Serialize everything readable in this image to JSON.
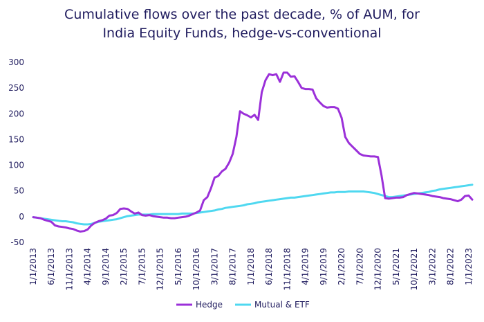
{
  "chart_data": {
    "type": "line",
    "title_line1": "Cumulative flows over the past decade, % of AUM, for",
    "title_line2": "India Equity Funds, hedge-vs-conventional",
    "xlabel": "",
    "ylabel": "",
    "ylim": [
      -50,
      300
    ],
    "y_ticks": [
      300,
      250,
      200,
      150,
      100,
      50,
      0,
      -50
    ],
    "x_tick_labels": [
      "1/1/2013",
      "6/1/2013",
      "11/1/2013",
      "4/1/2014",
      "9/1/2014",
      "2/1/2015",
      "7/1/2015",
      "12/1/2015",
      "5/1/2016",
      "10/1/2016",
      "3/1/2017",
      "8/1/2017",
      "1/1/2018",
      "6/1/2018",
      "11/1/2018",
      "4/1/2019",
      "9/1/2019",
      "2/1/2020",
      "7/1/2020",
      "12/1/2020",
      "5/1/2021",
      "10/1/2021",
      "3/1/2022",
      "8/1/2022",
      "1/1/2023"
    ],
    "grid": false,
    "legend_position": "bottom",
    "series": [
      {
        "name": "Hedge",
        "color": "#9b30d9",
        "x": [
          0,
          1,
          2,
          3,
          4,
          5,
          6,
          7,
          8,
          9,
          10,
          11,
          12,
          13,
          14,
          15,
          16,
          17,
          18,
          19,
          20,
          21,
          22,
          23,
          24,
          25,
          26,
          27,
          28,
          29,
          30,
          31,
          32,
          33,
          34,
          35,
          36,
          37,
          38,
          39,
          40,
          41,
          42,
          43,
          44,
          45,
          46,
          47,
          48,
          49,
          50,
          51,
          52,
          53,
          54,
          55,
          56,
          57,
          58,
          59,
          60,
          61,
          62,
          63,
          64,
          65,
          66,
          67,
          68,
          69,
          70,
          71,
          72,
          73,
          74,
          75,
          76,
          77,
          78,
          79,
          80,
          81,
          82,
          83,
          84,
          85,
          86,
          87,
          88,
          89,
          90,
          91,
          92,
          93,
          94,
          95,
          96,
          97,
          98,
          99,
          100,
          101,
          102,
          103,
          104,
          105,
          106,
          107,
          108,
          109,
          110,
          111,
          112,
          113,
          114,
          115,
          116,
          117,
          118,
          119,
          120,
          121
        ],
        "values": [
          -1,
          -2,
          -3,
          -6,
          -8,
          -10,
          -17,
          -19,
          -20,
          -21,
          -23,
          -24,
          -27,
          -29,
          -28,
          -25,
          -17,
          -12,
          -9,
          -7,
          -4,
          2,
          3,
          7,
          15,
          16,
          15,
          10,
          6,
          8,
          3,
          2,
          3,
          1,
          0,
          -1,
          -2,
          -2,
          -3,
          -3,
          -2,
          -1,
          0,
          2,
          5,
          8,
          12,
          32,
          38,
          55,
          76,
          79,
          88,
          93,
          105,
          122,
          155,
          205,
          200,
          197,
          193,
          198,
          188,
          242,
          265,
          277,
          275,
          277,
          262,
          280,
          280,
          272,
          273,
          262,
          250,
          248,
          248,
          247,
          230,
          222,
          215,
          212,
          213,
          213,
          210,
          192,
          155,
          143,
          136,
          129,
          122,
          119,
          118,
          117,
          117,
          116,
          80,
          36,
          35,
          36,
          37,
          37,
          38,
          42,
          44,
          46,
          45,
          44,
          43,
          42,
          40,
          39,
          38,
          36,
          35,
          34,
          32,
          30,
          33,
          40,
          41,
          33
        ]
      },
      {
        "name": "Mutual & ETF",
        "color": "#4fd8f0",
        "x": [
          0,
          1,
          2,
          3,
          4,
          5,
          6,
          7,
          8,
          9,
          10,
          11,
          12,
          13,
          14,
          15,
          16,
          17,
          18,
          19,
          20,
          21,
          22,
          23,
          24,
          25,
          26,
          27,
          28,
          29,
          30,
          31,
          32,
          33,
          34,
          35,
          36,
          37,
          38,
          39,
          40,
          41,
          42,
          43,
          44,
          45,
          46,
          47,
          48,
          49,
          50,
          51,
          52,
          53,
          54,
          55,
          56,
          57,
          58,
          59,
          60,
          61,
          62,
          63,
          64,
          65,
          66,
          67,
          68,
          69,
          70,
          71,
          72,
          73,
          74,
          75,
          76,
          77,
          78,
          79,
          80,
          81,
          82,
          83,
          84,
          85,
          86,
          87,
          88,
          89,
          90,
          91,
          92,
          93,
          94,
          95,
          96,
          97,
          98,
          99,
          100,
          101,
          102,
          103,
          104,
          105,
          106,
          107,
          108,
          109,
          110,
          111,
          112,
          113,
          114,
          115,
          116,
          117,
          118,
          119,
          120,
          121
        ],
        "values": [
          -1,
          -2,
          -3,
          -4,
          -5,
          -6,
          -7,
          -8,
          -9,
          -9,
          -10,
          -11,
          -13,
          -14,
          -15,
          -15,
          -14,
          -12,
          -10,
          -9,
          -8,
          -7,
          -6,
          -5,
          -3,
          -1,
          1,
          2,
          3,
          4,
          4,
          4,
          4,
          5,
          5,
          5,
          5,
          5,
          5,
          5,
          5,
          6,
          6,
          6,
          6,
          7,
          8,
          9,
          10,
          11,
          12,
          14,
          15,
          17,
          18,
          19,
          20,
          21,
          22,
          24,
          25,
          26,
          28,
          29,
          30,
          31,
          32,
          33,
          34,
          35,
          36,
          37,
          37,
          38,
          39,
          40,
          41,
          42,
          43,
          44,
          45,
          46,
          47,
          47,
          48,
          48,
          48,
          49,
          49,
          49,
          49,
          49,
          48,
          47,
          46,
          44,
          42,
          40,
          38,
          38,
          39,
          40,
          41,
          42,
          43,
          44,
          45,
          46,
          47,
          48,
          50,
          51,
          53,
          54,
          55,
          56,
          57,
          58,
          59,
          60,
          61,
          62
        ]
      }
    ]
  }
}
